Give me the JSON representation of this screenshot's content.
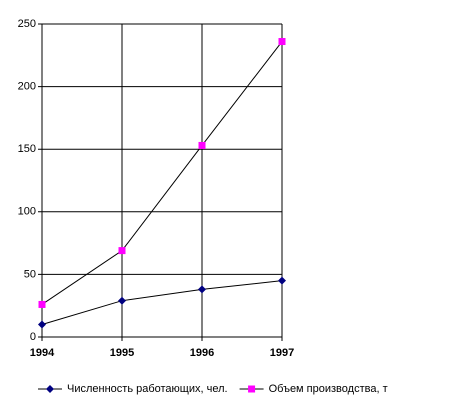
{
  "chart_data": {
    "type": "line",
    "x": [
      1994,
      1995,
      1996,
      1997
    ],
    "series": [
      {
        "name": "Численность работающих, чел.",
        "color": "#000080",
        "values": [
          10,
          29,
          38,
          45
        ]
      },
      {
        "name": "Объем производства, т",
        "color": "#ff00ff",
        "values": [
          26,
          69,
          153,
          236
        ]
      }
    ],
    "line_color": "#000000",
    "xlim": [
      1994,
      1997
    ],
    "xticks": [
      1994,
      1995,
      1996,
      1997
    ],
    "ylim": [
      0,
      250
    ],
    "yticks": [
      0,
      50,
      100,
      150,
      200,
      250
    ],
    "grid": true,
    "legend": "bottom"
  }
}
